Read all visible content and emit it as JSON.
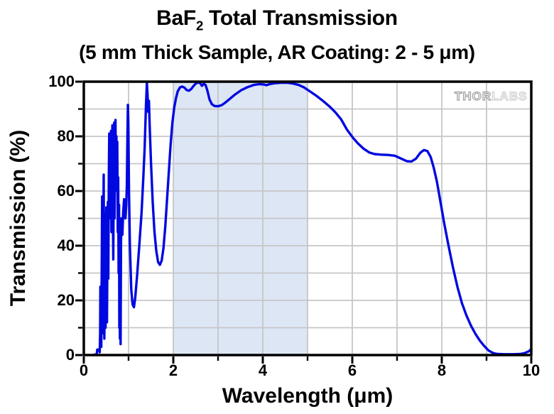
{
  "header": {
    "title_prefix": "BaF",
    "title_subscript": "2",
    "title_suffix": " Total Transmission",
    "subtitle": "(5 mm Thick Sample, AR Coating: 2 - 5 μm)"
  },
  "watermark": {
    "brand_left": "THOR",
    "brand_right": "LABS"
  },
  "colors": {
    "curve": "#0008e0",
    "band": "#dde6f5",
    "grid": "#c6c6c6",
    "axis": "#000000",
    "background": "#ffffff"
  },
  "chart_data": {
    "type": "line",
    "title": "BaF2 Total Transmission",
    "subtitle": "(5 mm Thick Sample, AR Coating: 2 - 5 μm)",
    "xlabel": "Wavelength (μm)",
    "ylabel": "Transmission (%)",
    "xlim": [
      0,
      10
    ],
    "ylim": [
      0,
      100
    ],
    "x_major_ticks": [
      0,
      2,
      4,
      6,
      8,
      10
    ],
    "x_minor_ticks": [
      1,
      3,
      5,
      7,
      9
    ],
    "y_major_ticks": [
      0,
      20,
      40,
      60,
      80,
      100
    ],
    "y_minor_ticks": [
      10,
      30,
      50,
      70,
      90
    ],
    "grid": true,
    "grid_spacing": {
      "x": 1,
      "y": 10
    },
    "legend": "none",
    "shaded_region": {
      "x_from": 2,
      "x_to": 5
    },
    "series": [
      {
        "name": "BaF2 total transmission, 5 mm thick, AR coated 2-5 μm",
        "points": [
          [
            0.2,
            0
          ],
          [
            0.26,
            0.2
          ],
          [
            0.29,
            0.5
          ],
          [
            0.3,
            2
          ],
          [
            0.34,
            2
          ],
          [
            0.355,
            1
          ],
          [
            0.365,
            8
          ],
          [
            0.37,
            25
          ],
          [
            0.375,
            5
          ],
          [
            0.385,
            15
          ],
          [
            0.39,
            3
          ],
          [
            0.4,
            30
          ],
          [
            0.41,
            58
          ],
          [
            0.415,
            20
          ],
          [
            0.425,
            8
          ],
          [
            0.435,
            45
          ],
          [
            0.445,
            66
          ],
          [
            0.452,
            20
          ],
          [
            0.458,
            6
          ],
          [
            0.468,
            30
          ],
          [
            0.478,
            52
          ],
          [
            0.485,
            10
          ],
          [
            0.495,
            25
          ],
          [
            0.503,
            54
          ],
          [
            0.51,
            30
          ],
          [
            0.518,
            12
          ],
          [
            0.528,
            40
          ],
          [
            0.538,
            56
          ],
          [
            0.548,
            28
          ],
          [
            0.558,
            65
          ],
          [
            0.568,
            81
          ],
          [
            0.578,
            50
          ],
          [
            0.588,
            58
          ],
          [
            0.598,
            70
          ],
          [
            0.608,
            82
          ],
          [
            0.618,
            45
          ],
          [
            0.628,
            60
          ],
          [
            0.638,
            84
          ],
          [
            0.648,
            55
          ],
          [
            0.658,
            35
          ],
          [
            0.668,
            70
          ],
          [
            0.678,
            85
          ],
          [
            0.688,
            50
          ],
          [
            0.698,
            75
          ],
          [
            0.708,
            86
          ],
          [
            0.718,
            65
          ],
          [
            0.728,
            80
          ],
          [
            0.738,
            60
          ],
          [
            0.748,
            78
          ],
          [
            0.758,
            45
          ],
          [
            0.768,
            65
          ],
          [
            0.778,
            30
          ],
          [
            0.788,
            55
          ],
          [
            0.793,
            10
          ],
          [
            0.8,
            45
          ],
          [
            0.806,
            6
          ],
          [
            0.816,
            40
          ],
          [
            0.822,
            4
          ],
          [
            0.832,
            42
          ],
          [
            0.842,
            50
          ],
          [
            0.852,
            47
          ],
          [
            0.862,
            44
          ],
          [
            0.88,
            52
          ],
          [
            0.9,
            57
          ],
          [
            0.91,
            52
          ],
          [
            0.93,
            50
          ],
          [
            0.95,
            55
          ],
          [
            0.962,
            62
          ],
          [
            0.975,
            80
          ],
          [
            0.985,
            91.5
          ],
          [
            0.995,
            85
          ],
          [
            1.01,
            60
          ],
          [
            1.03,
            40
          ],
          [
            1.06,
            24
          ],
          [
            1.09,
            18.5
          ],
          [
            1.12,
            17.5
          ],
          [
            1.15,
            21
          ],
          [
            1.19,
            29
          ],
          [
            1.24,
            40
          ],
          [
            1.29,
            52
          ],
          [
            1.33,
            65
          ],
          [
            1.36,
            76
          ],
          [
            1.39,
            92
          ],
          [
            1.41,
            99.5
          ],
          [
            1.425,
            95
          ],
          [
            1.44,
            89
          ],
          [
            1.455,
            93
          ],
          [
            1.47,
            85
          ],
          [
            1.5,
            71
          ],
          [
            1.54,
            56
          ],
          [
            1.58,
            45
          ],
          [
            1.62,
            38
          ],
          [
            1.66,
            34
          ],
          [
            1.7,
            33
          ],
          [
            1.74,
            34.5
          ],
          [
            1.78,
            39
          ],
          [
            1.82,
            47
          ],
          [
            1.86,
            57
          ],
          [
            1.9,
            67
          ],
          [
            1.94,
            77
          ],
          [
            1.98,
            85
          ],
          [
            2.02,
            90.5
          ],
          [
            2.06,
            94
          ],
          [
            2.1,
            96.5
          ],
          [
            2.15,
            97.9
          ],
          [
            2.2,
            98.2
          ],
          [
            2.25,
            97.8
          ],
          [
            2.3,
            96.9
          ],
          [
            2.35,
            96.7
          ],
          [
            2.4,
            97.3
          ],
          [
            2.45,
            98.4
          ],
          [
            2.5,
            99.3
          ],
          [
            2.55,
            99.7
          ],
          [
            2.6,
            99.5
          ],
          [
            2.64,
            98.5
          ],
          [
            2.68,
            99.2
          ],
          [
            2.72,
            98.8
          ],
          [
            2.76,
            96.8
          ],
          [
            2.81,
            93.5
          ],
          [
            2.86,
            91.8
          ],
          [
            2.92,
            91.1
          ],
          [
            3.0,
            91.0
          ],
          [
            3.08,
            91.4
          ],
          [
            3.16,
            92.3
          ],
          [
            3.26,
            93.7
          ],
          [
            3.38,
            95.3
          ],
          [
            3.52,
            96.9
          ],
          [
            3.66,
            98.0
          ],
          [
            3.8,
            98.8
          ],
          [
            3.92,
            99.1
          ],
          [
            4.02,
            99.0
          ],
          [
            4.08,
            98.7
          ],
          [
            4.15,
            99.1
          ],
          [
            4.25,
            99.4
          ],
          [
            4.4,
            99.6
          ],
          [
            4.55,
            99.6
          ],
          [
            4.68,
            99.3
          ],
          [
            4.8,
            98.8
          ],
          [
            4.92,
            97.9
          ],
          [
            5.05,
            96.5
          ],
          [
            5.2,
            94.8
          ],
          [
            5.35,
            92.9
          ],
          [
            5.5,
            90.8
          ],
          [
            5.62,
            88.8
          ],
          [
            5.75,
            86.2
          ],
          [
            5.88,
            82.5
          ],
          [
            6.0,
            79.8
          ],
          [
            6.12,
            77.5
          ],
          [
            6.25,
            75.5
          ],
          [
            6.38,
            74.1
          ],
          [
            6.5,
            73.5
          ],
          [
            6.65,
            73.3
          ],
          [
            6.8,
            73.2
          ],
          [
            6.95,
            72.9
          ],
          [
            7.1,
            71.8
          ],
          [
            7.22,
            70.9
          ],
          [
            7.32,
            70.8
          ],
          [
            7.42,
            71.8
          ],
          [
            7.52,
            74.0
          ],
          [
            7.6,
            75.0
          ],
          [
            7.68,
            74.6
          ],
          [
            7.75,
            72.5
          ],
          [
            7.82,
            68.5
          ],
          [
            7.89,
            63.5
          ],
          [
            7.96,
            57.0
          ],
          [
            8.05,
            48.5
          ],
          [
            8.15,
            40
          ],
          [
            8.25,
            32
          ],
          [
            8.35,
            25
          ],
          [
            8.45,
            19
          ],
          [
            8.55,
            14.5
          ],
          [
            8.65,
            10.8
          ],
          [
            8.75,
            7.8
          ],
          [
            8.85,
            5.3
          ],
          [
            8.95,
            3.3
          ],
          [
            9.05,
            1.6
          ],
          [
            9.15,
            0.7
          ],
          [
            9.25,
            0.4
          ],
          [
            9.4,
            0.3
          ],
          [
            9.6,
            0.3
          ],
          [
            9.75,
            0.4
          ],
          [
            9.85,
            0.7
          ],
          [
            9.95,
            1.4
          ],
          [
            10.0,
            2.2
          ]
        ]
      }
    ]
  }
}
